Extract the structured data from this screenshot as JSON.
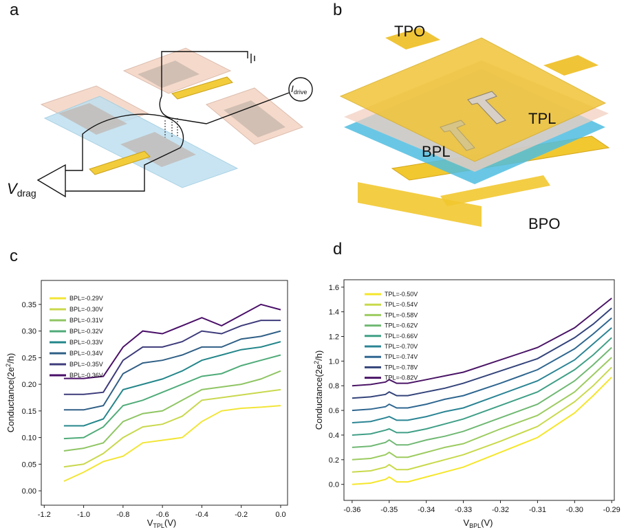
{
  "panel_labels": [
    "a",
    "b",
    "c",
    "d"
  ],
  "diagram_a": {
    "v_drag": [
      "V",
      "drag"
    ],
    "i_drive": [
      "I",
      "drive"
    ]
  },
  "diagram_b": {
    "labels": [
      "TPO",
      "TPL",
      "BPL",
      "BPO"
    ]
  },
  "chart_data": [
    {
      "type": "line",
      "x_label": [
        "V",
        "TPL",
        "(V)"
      ],
      "y_label": [
        "Conductance(2e",
        "2",
        "/h)"
      ],
      "legend": "upper left",
      "xlim": [
        -1.215,
        0.035
      ],
      "ylim": [
        -0.027,
        0.395
      ],
      "xticks": [
        -1.2,
        {
          "value": -1,
          "label": "-1.0"
        },
        -0.8,
        -0.6,
        -0.4,
        -0.2,
        {
          "value": 0,
          "label": "0.0"
        }
      ],
      "yticks": [
        {
          "value": 0,
          "label": "0.00"
        },
        0.05,
        {
          "value": 0.1,
          "label": "0.10"
        },
        0.15,
        {
          "value": 0.2,
          "label": "0.20"
        },
        0.25,
        {
          "value": 0.3,
          "label": "0.30"
        },
        0.35
      ],
      "x": [
        -1.1,
        -1.0,
        -0.9,
        -0.8,
        -0.7,
        -0.6,
        -0.5,
        -0.4,
        -0.3,
        -0.2,
        -0.1,
        0.0
      ],
      "series": [
        {
          "name": "BPL=-0.29V",
          "color": "#f2e535",
          "values": [
            0.018,
            0.035,
            0.055,
            0.065,
            0.09,
            0.095,
            0.1,
            0.13,
            0.15,
            0.155,
            0.157,
            0.16
          ]
        },
        {
          "name": "BPL=-0.30V",
          "color": "#c9d84c",
          "values": [
            0.045,
            0.05,
            0.07,
            0.1,
            0.12,
            0.125,
            0.14,
            0.17,
            0.175,
            0.18,
            0.185,
            0.19
          ]
        },
        {
          "name": "BPL=-0.31V",
          "color": "#8fc563",
          "values": [
            0.075,
            0.08,
            0.09,
            0.13,
            0.145,
            0.15,
            0.17,
            0.19,
            0.195,
            0.2,
            0.21,
            0.225
          ]
        },
        {
          "name": "BPL=-0.32V",
          "color": "#4fab78",
          "values": [
            0.098,
            0.1,
            0.12,
            0.16,
            0.17,
            0.185,
            0.2,
            0.215,
            0.22,
            0.235,
            0.245,
            0.255
          ]
        },
        {
          "name": "BPL=-0.33V",
          "color": "#23868a",
          "values": [
            0.122,
            0.122,
            0.135,
            0.19,
            0.2,
            0.21,
            0.225,
            0.245,
            0.255,
            0.265,
            0.27,
            0.28
          ]
        },
        {
          "name": "BPL=-0.34V",
          "color": "#2f5f86",
          "values": [
            0.152,
            0.152,
            0.16,
            0.22,
            0.24,
            0.245,
            0.255,
            0.27,
            0.27,
            0.285,
            0.29,
            0.3
          ]
        },
        {
          "name": "BPL=-0.35V",
          "color": "#3d3b7a",
          "values": [
            0.181,
            0.181,
            0.185,
            0.245,
            0.27,
            0.27,
            0.28,
            0.3,
            0.295,
            0.31,
            0.32,
            0.32
          ]
        },
        {
          "name": "BPL=-0.36V",
          "color": "#4a0f68",
          "values": [
            0.211,
            0.211,
            0.215,
            0.27,
            0.3,
            0.295,
            0.31,
            0.325,
            0.31,
            0.33,
            0.35,
            0.34
          ]
        }
      ]
    },
    {
      "type": "line",
      "x_label": [
        "V",
        "BPL",
        "(V)"
      ],
      "y_label": [
        "Conductance(2e",
        "2",
        "/h)"
      ],
      "legend": "upper left",
      "xlim": [
        -0.3622,
        -0.2893
      ],
      "ylim": [
        -0.13,
        1.66
      ],
      "xticks": [
        -0.36,
        -0.35,
        -0.34,
        -0.33,
        -0.32,
        -0.31,
        {
          "value": -0.3,
          "label": "-0.30"
        },
        -0.29
      ],
      "yticks": [
        {
          "value": 0,
          "label": "0.0"
        },
        0.2,
        0.4,
        0.6,
        0.8,
        {
          "value": 1,
          "label": "1.0"
        },
        1.2,
        1.4,
        1.6
      ],
      "x": [
        -0.36,
        -0.355,
        -0.351,
        -0.35,
        -0.348,
        -0.345,
        -0.34,
        -0.335,
        -0.33,
        -0.32,
        -0.31,
        -0.3,
        -0.295,
        -0.29
      ],
      "series": [
        {
          "name": "TPL=-0.50V",
          "color": "#f5e62a",
          "values": [
            0,
            0.01,
            0.04,
            0.06,
            0.02,
            0.02,
            0.06,
            0.1,
            0.14,
            0.26,
            0.38,
            0.58,
            0.72,
            0.87
          ]
        },
        {
          "name": "TPL=-0.54V",
          "color": "#c8d94a",
          "values": [
            0.1,
            0.11,
            0.14,
            0.16,
            0.12,
            0.12,
            0.16,
            0.2,
            0.24,
            0.35,
            0.47,
            0.67,
            0.8,
            0.95
          ]
        },
        {
          "name": "TPL=-0.58V",
          "color": "#9ccb5f",
          "values": [
            0.2,
            0.21,
            0.24,
            0.26,
            0.22,
            0.22,
            0.26,
            0.3,
            0.33,
            0.45,
            0.56,
            0.75,
            0.89,
            1.03
          ]
        },
        {
          "name": "TPL=-0.62V",
          "color": "#6fb872",
          "values": [
            0.3,
            0.31,
            0.34,
            0.36,
            0.32,
            0.32,
            0.36,
            0.39,
            0.43,
            0.54,
            0.65,
            0.84,
            0.97,
            1.11
          ]
        },
        {
          "name": "TPL=-0.66V",
          "color": "#3f9f86",
          "values": [
            0.4,
            0.41,
            0.44,
            0.45,
            0.42,
            0.42,
            0.45,
            0.49,
            0.53,
            0.64,
            0.75,
            0.93,
            1.05,
            1.19
          ]
        },
        {
          "name": "TPL=-0.70V",
          "color": "#2a8494",
          "values": [
            0.5,
            0.51,
            0.54,
            0.55,
            0.52,
            0.52,
            0.55,
            0.59,
            0.62,
            0.73,
            0.84,
            1.01,
            1.14,
            1.27
          ]
        },
        {
          "name": "TPL=-0.74V",
          "color": "#2e6690",
          "values": [
            0.6,
            0.61,
            0.63,
            0.65,
            0.62,
            0.62,
            0.65,
            0.69,
            0.72,
            0.82,
            0.93,
            1.1,
            1.22,
            1.35
          ]
        },
        {
          "name": "TPL=-0.78V",
          "color": "#33437a",
          "values": [
            0.7,
            0.71,
            0.73,
            0.75,
            0.72,
            0.72,
            0.75,
            0.78,
            0.82,
            0.92,
            1.02,
            1.19,
            1.3,
            1.43
          ]
        },
        {
          "name": "TPL=-0.82V",
          "color": "#4a1466",
          "values": [
            0.8,
            0.81,
            0.83,
            0.85,
            0.82,
            0.82,
            0.85,
            0.88,
            0.91,
            1.01,
            1.11,
            1.27,
            1.39,
            1.51
          ]
        }
      ]
    }
  ]
}
